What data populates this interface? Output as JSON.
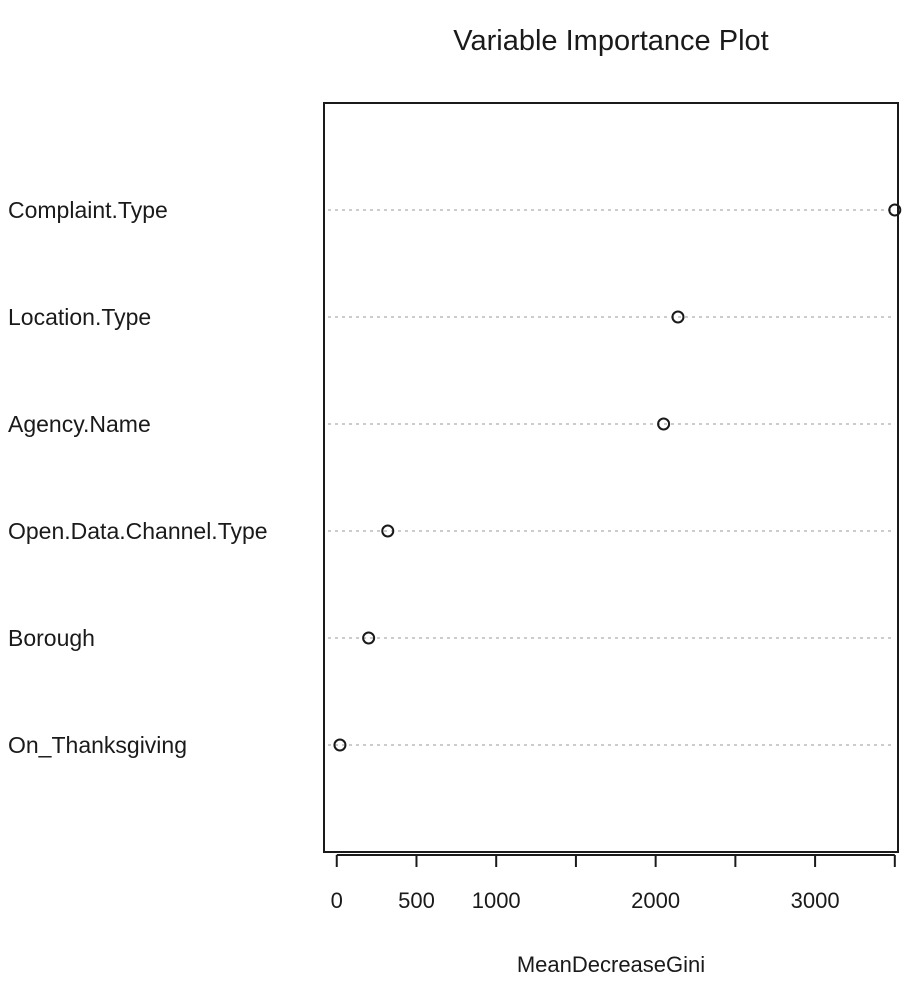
{
  "chart_data": {
    "type": "scatter",
    "title": "Variable Importance Plot",
    "xlabel": "MeanDecreaseGini",
    "ylabel": "",
    "xlim": [
      -80,
      3520
    ],
    "x_ticks": [
      0,
      500,
      1000,
      1500,
      2000,
      2500,
      3000,
      3500
    ],
    "x_tick_labels": [
      "0",
      "500",
      "1000",
      "",
      "2000",
      "",
      "3000",
      ""
    ],
    "categories": [
      "Complaint.Type",
      "Location.Type",
      "Agency.Name",
      "Open.Data.Channel.Type",
      "Borough",
      "On_Thanksgiving"
    ],
    "values": [
      3500,
      2140,
      2050,
      320,
      200,
      20
    ],
    "grid": "dotted horizontal guide lines",
    "marker": "open circle",
    "colors": {
      "marker": "#1a1a1a",
      "guide": "#bbbbbb",
      "axis": "#1a1a1a"
    }
  }
}
